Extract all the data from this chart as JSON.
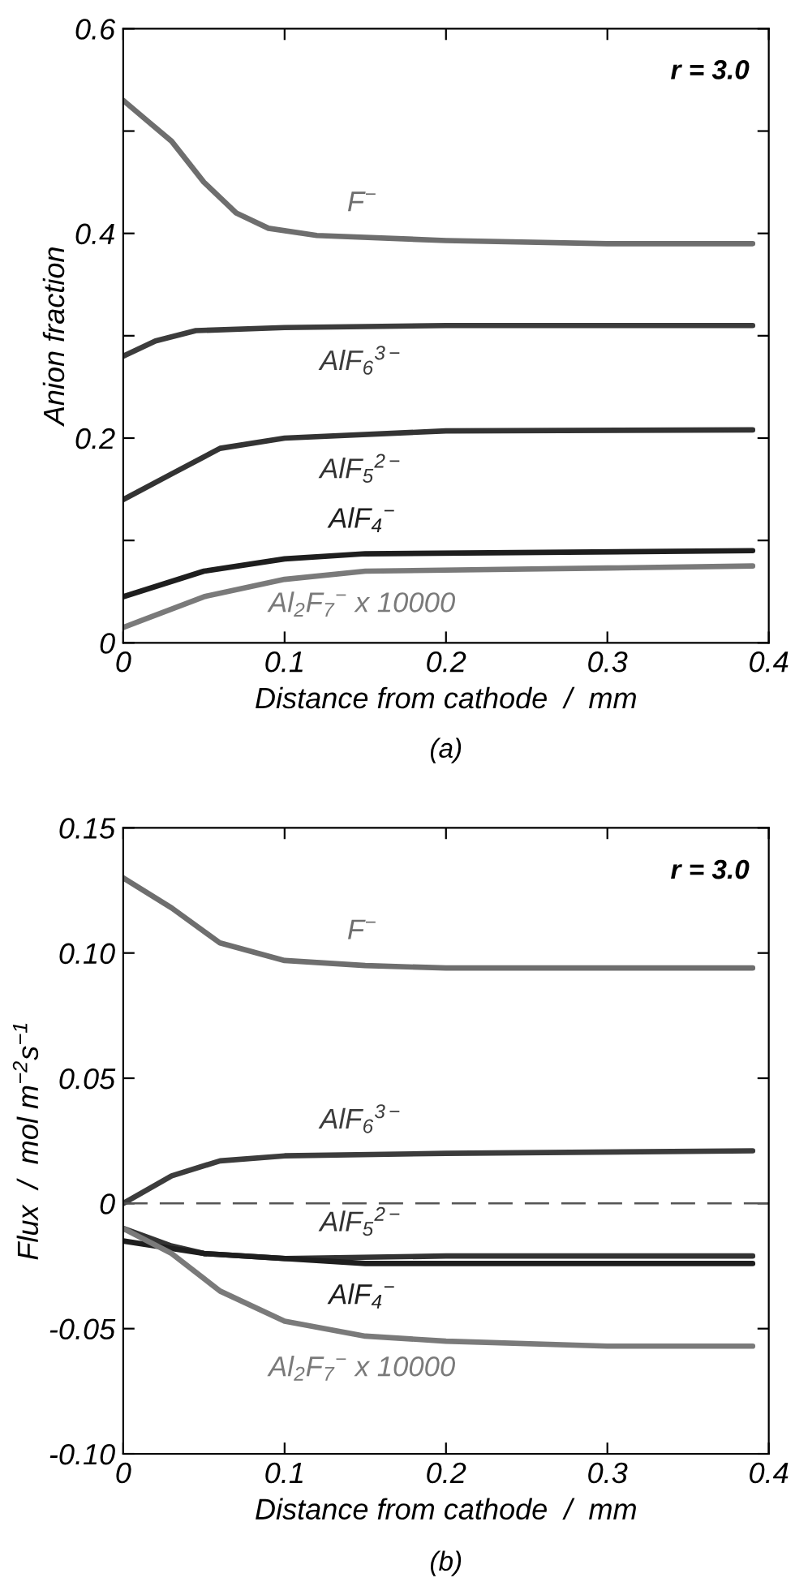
{
  "chart_data": [
    {
      "type": "line",
      "xlabel": "Distance from cathode  /  mm",
      "ylabel": "Anion fraction",
      "xlim": [
        0,
        0.4
      ],
      "xticks": [
        0,
        0.1,
        0.2,
        0.3,
        0.4
      ],
      "ylim": [
        0,
        0.6
      ],
      "yticks": [
        0,
        {
          "value": 0.1,
          "label": null
        },
        0.2,
        {
          "value": 0.3,
          "label": null
        },
        0.4,
        {
          "value": 0.5,
          "label": null
        },
        0.6
      ],
      "grid": false,
      "legend": false,
      "marker": "none",
      "line_style": "solid",
      "series": [
        {
          "name": "F$^{−}$",
          "color": "#6e6e6e",
          "x": [
            0,
            0.015,
            0.03,
            0.05,
            0.07,
            0.09,
            0.12,
            0.2,
            0.3,
            0.39
          ],
          "values": [
            0.53,
            0.51,
            0.49,
            0.45,
            0.42,
            0.405,
            0.398,
            0.393,
            0.39,
            0.39
          ]
        },
        {
          "name": "AlF$_{6}$$^{3−}$",
          "color": "#3c3c3c",
          "x": [
            0,
            0.02,
            0.045,
            0.1,
            0.2,
            0.39
          ],
          "values": [
            0.28,
            0.295,
            0.305,
            0.308,
            0.31,
            0.31
          ]
        },
        {
          "name": "AlF$_{5}$$^{2−}$",
          "color": "#333333",
          "x": [
            0,
            0.03,
            0.06,
            0.1,
            0.2,
            0.39
          ],
          "values": [
            0.14,
            0.165,
            0.19,
            0.2,
            0.207,
            0.208
          ]
        },
        {
          "name": "AlF$_{4}$$^{−}$",
          "color": "#1e1e1e",
          "x": [
            0,
            0.05,
            0.1,
            0.15,
            0.39
          ],
          "values": [
            0.045,
            0.07,
            0.082,
            0.087,
            0.09
          ]
        },
        {
          "name": "Al$_{2}$F$_{7}$$^{−}$ x 10000",
          "color": "#7a7a7a",
          "x": [
            0,
            0.05,
            0.1,
            0.15,
            0.3,
            0.39
          ],
          "values": [
            0.015,
            0.045,
            0.062,
            0.07,
            0.073,
            0.075
          ]
        }
      ],
      "annotations": [
        "r = 3.0",
        "(a)"
      ]
    },
    {
      "type": "line",
      "xlabel": "Distance from cathode  /  mm",
      "ylabel": "Flux  /  mol m$^{−2}$s$^{−1}$",
      "xlim": [
        0,
        0.4
      ],
      "xticks": [
        0,
        0.1,
        0.2,
        0.3,
        0.4
      ],
      "ylim": [
        -0.1,
        0.15
      ],
      "yticks": [
        {
          "value": -0.1,
          "label": "-0.10"
        },
        {
          "value": -0.05,
          "label": "-0.05"
        },
        0,
        0.05,
        {
          "value": 0.1,
          "label": "0.10"
        },
        0.15
      ],
      "grid": false,
      "legend": false,
      "marker": "none",
      "line_style": "solid",
      "ref_lines": [
        {
          "axis": "y",
          "value": 0,
          "label": null,
          "color": "#555555",
          "line_style": "dashed"
        }
      ],
      "series": [
        {
          "name": "F$^{−}$",
          "color": "#6e6e6e",
          "x": [
            0,
            0.03,
            0.06,
            0.1,
            0.15,
            0.2,
            0.39
          ],
          "values": [
            0.13,
            0.118,
            0.104,
            0.097,
            0.095,
            0.094,
            0.094
          ]
        },
        {
          "name": "AlF$_{6}$$^{3−}$",
          "color": "#3c3c3c",
          "x": [
            0,
            0.03,
            0.06,
            0.1,
            0.2,
            0.39
          ],
          "values": [
            0,
            0.011,
            0.017,
            0.019,
            0.02,
            0.021
          ]
        },
        {
          "name": "AlF$_{5}$$^{2−}$",
          "color": "#333333",
          "x": [
            0,
            0.03,
            0.05,
            0.1,
            0.2,
            0.39
          ],
          "values": [
            -0.01,
            -0.017,
            -0.02,
            -0.022,
            -0.021,
            -0.021
          ]
        },
        {
          "name": "AlF$_{4}$$^{−}$",
          "color": "#1e1e1e",
          "x": [
            0,
            0.05,
            0.15,
            0.39
          ],
          "values": [
            -0.015,
            -0.02,
            -0.024,
            -0.024
          ]
        },
        {
          "name": "Al$_{2}$F$_{7}$$^{−}$ x 10000",
          "color": "#7a7a7a",
          "x": [
            0,
            0.03,
            0.06,
            0.1,
            0.15,
            0.2,
            0.3,
            0.39
          ],
          "values": [
            -0.01,
            -0.02,
            -0.035,
            -0.047,
            -0.053,
            -0.055,
            -0.057,
            -0.057
          ]
        }
      ],
      "annotations": [
        "r = 3.0",
        "(b)"
      ]
    }
  ]
}
